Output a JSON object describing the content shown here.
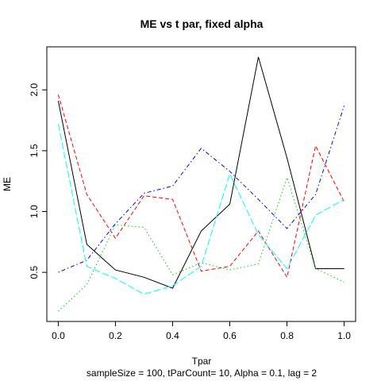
{
  "chart_data": {
    "type": "line",
    "title": "ME vs t par, fixed alpha",
    "xlabel": "Tpar",
    "ylabel": "ME",
    "subtitle": "sampleSize = 100, tParCount= 10, Alpha = 0.1, lag = 2",
    "x": [
      0.0,
      0.1,
      0.2,
      0.3,
      0.4,
      0.5,
      0.6,
      0.7,
      0.8,
      0.9,
      1.0
    ],
    "xlim": [
      0,
      1
    ],
    "ylim": [
      0.18,
      2.27
    ],
    "x_ticks": [
      "0.0",
      "0.2",
      "0.4",
      "0.6",
      "0.8",
      "1.0"
    ],
    "y_ticks": [
      "0.5",
      "1.0",
      "1.5",
      "2.0"
    ],
    "series": [
      {
        "color": "#000000",
        "dash": "solid",
        "values": [
          1.91,
          0.73,
          0.52,
          0.46,
          0.37,
          0.84,
          1.06,
          2.27,
          1.44,
          0.53,
          0.53
        ]
      },
      {
        "color": "#ff0000",
        "dash": "dashed",
        "values": [
          1.96,
          1.14,
          0.78,
          1.13,
          1.1,
          0.51,
          0.55,
          0.84,
          0.46,
          1.54,
          1.08
        ]
      },
      {
        "color": "#00cd00",
        "dash": "dotted",
        "values": [
          0.18,
          0.4,
          0.89,
          0.87,
          0.48,
          0.58,
          0.52,
          0.57,
          1.28,
          0.53,
          0.42
        ]
      },
      {
        "color": "#0000ff",
        "dash": "dotdash",
        "values": [
          0.5,
          0.6,
          0.9,
          1.15,
          1.21,
          1.52,
          1.33,
          1.1,
          0.86,
          1.14,
          1.87
        ]
      },
      {
        "color": "#00ffff",
        "dash": "longdash",
        "values": [
          1.72,
          0.55,
          0.45,
          0.32,
          0.39,
          0.55,
          1.31,
          0.81,
          0.53,
          0.97,
          1.1
        ]
      }
    ]
  }
}
